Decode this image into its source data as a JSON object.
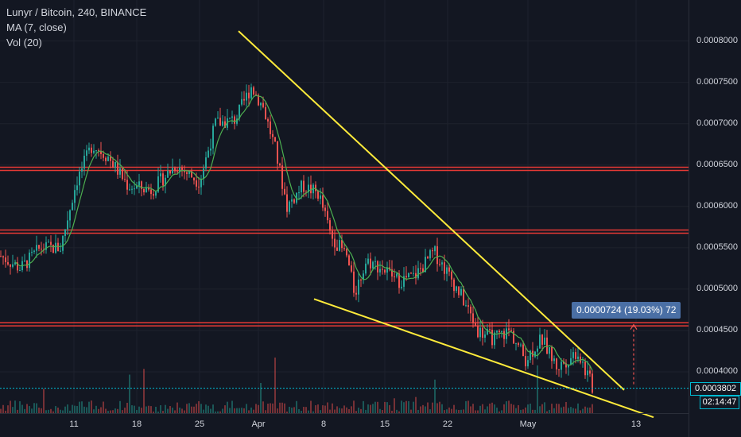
{
  "legend": {
    "symbol_line": "Lunyr / Bitcoin, 240, BINANCE",
    "ma_line": "MA (7, close)",
    "vol_line": "Vol (20)"
  },
  "price_tag": "0.0003802",
  "timer_tag": "02:14:47",
  "measure_label": "0.0000724 (19.03%) 72",
  "colors": {
    "background": "#131722",
    "up": "#26a69a",
    "down": "#ef5350",
    "ma": "#4caf50",
    "trendline": "#ffeb3b",
    "support_line": "#e53935",
    "price_line": "#00bcd4"
  },
  "chart_data": {
    "type": "candlestick",
    "title": "Lunyr / Bitcoin, 240, BINANCE",
    "y_ticks": [
      "0.0008000",
      "0.0007500",
      "0.0007000",
      "0.0006500",
      "0.0006000",
      "0.0005500",
      "0.0005000",
      "0.0004500",
      "0.0004000"
    ],
    "x_ticks": [
      "11",
      "18",
      "25",
      "Apr",
      "8",
      "15",
      "22",
      "May",
      "13"
    ],
    "ylim": [
      0.00035,
      0.00084
    ],
    "current_price": 0.0003802,
    "close_path": [
      {
        "x": 0,
        "y": 0.00054
      },
      {
        "x": 25,
        "y": 0.000525
      },
      {
        "x": 50,
        "y": 0.00055
      },
      {
        "x": 75,
        "y": 0.00055
      },
      {
        "x": 95,
        "y": 0.00063
      },
      {
        "x": 115,
        "y": 0.000675
      },
      {
        "x": 135,
        "y": 0.00066
      },
      {
        "x": 160,
        "y": 0.000625
      },
      {
        "x": 190,
        "y": 0.00062
      },
      {
        "x": 220,
        "y": 0.00065
      },
      {
        "x": 250,
        "y": 0.00063
      },
      {
        "x": 270,
        "y": 0.0007
      },
      {
        "x": 295,
        "y": 0.000705
      },
      {
        "x": 315,
        "y": 0.000745
      },
      {
        "x": 330,
        "y": 0.00072
      },
      {
        "x": 345,
        "y": 0.00067
      },
      {
        "x": 360,
        "y": 0.0006
      },
      {
        "x": 380,
        "y": 0.000625
      },
      {
        "x": 400,
        "y": 0.000615
      },
      {
        "x": 415,
        "y": 0.000565
      },
      {
        "x": 435,
        "y": 0.00054
      },
      {
        "x": 445,
        "y": 0.000495
      },
      {
        "x": 460,
        "y": 0.000535
      },
      {
        "x": 480,
        "y": 0.000525
      },
      {
        "x": 500,
        "y": 0.00051
      },
      {
        "x": 520,
        "y": 0.000515
      },
      {
        "x": 545,
        "y": 0.000545
      },
      {
        "x": 565,
        "y": 0.000515
      },
      {
        "x": 580,
        "y": 0.00049
      },
      {
        "x": 600,
        "y": 0.00045
      },
      {
        "x": 620,
        "y": 0.00044
      },
      {
        "x": 640,
        "y": 0.00045
      },
      {
        "x": 660,
        "y": 0.000415
      },
      {
        "x": 680,
        "y": 0.00044
      },
      {
        "x": 700,
        "y": 0.000405
      },
      {
        "x": 725,
        "y": 0.000425
      },
      {
        "x": 745,
        "y": 0.00038
      }
    ],
    "x_domain": [
      0,
      866
    ],
    "horizontal_lines": [
      0.0006455,
      0.0005695,
      0.0004575
    ],
    "trendlines": [
      {
        "x1": 300,
        "y1": 0.000812,
        "x2": 785,
        "y2": 0.000378
      },
      {
        "x1": 395,
        "y1": 0.000488,
        "x2": 822,
        "y2": 0.000345
      }
    ],
    "measure": {
      "x": 797,
      "y_from": 0.000385,
      "y_to": 0.000457
    }
  }
}
